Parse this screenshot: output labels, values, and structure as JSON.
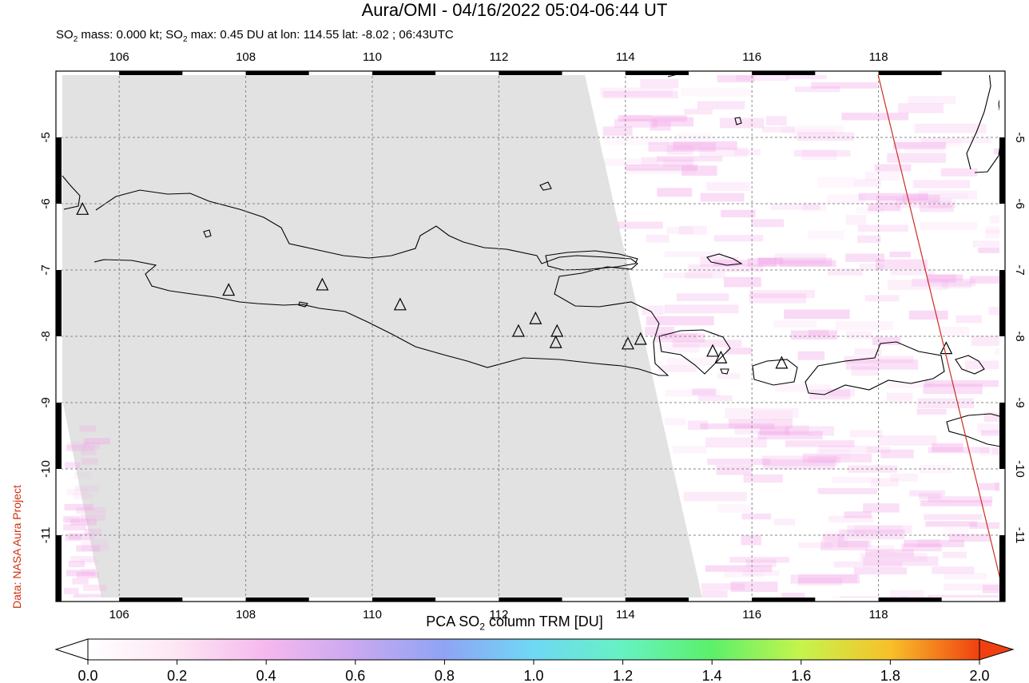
{
  "title": "Aura/OMI - 04/16/2022 05:04-06:44 UT",
  "subtitle": {
    "prefix": "SO",
    "sub": "2",
    "mid1": " mass: 0.000 kt; SO",
    "sub2": "2",
    "rest": " max: 0.45 DU at lon: 114.55 lat: -8.02 ; 06:43UTC"
  },
  "credit": "Data: NASA Aura Project",
  "colorbar": {
    "title_prefix": "PCA SO",
    "title_sub": "2",
    "title_rest": " column TRM [DU]",
    "ticks": [
      "0.0",
      "0.2",
      "0.4",
      "0.6",
      "0.8",
      "1.0",
      "1.2",
      "1.4",
      "1.6",
      "1.8",
      "2.0"
    ],
    "colors": [
      "#ffffff",
      "#fde6f4",
      "#f5b8ee",
      "#c9a8f0",
      "#8fa4f4",
      "#6fd8f4",
      "#66f2c2",
      "#5cf06a",
      "#c6f44c",
      "#f8c02a",
      "#f04010"
    ]
  },
  "map": {
    "lon_range": [
      105,
      120
    ],
    "lat_range": [
      -12,
      -4
    ],
    "lon_ticks": [
      "106",
      "108",
      "110",
      "112",
      "114",
      "116",
      "118"
    ],
    "lat_ticks": [
      "-5",
      "-6",
      "-7",
      "-8",
      "-9",
      "-10",
      "-11"
    ],
    "volcanoes": [
      [
        105.42,
        -6.1
      ],
      [
        107.73,
        -7.32
      ],
      [
        109.21,
        -7.24
      ],
      [
        110.44,
        -7.54
      ],
      [
        112.31,
        -7.94
      ],
      [
        112.58,
        -7.75
      ],
      [
        112.92,
        -7.94
      ],
      [
        112.9,
        -8.11
      ],
      [
        114.04,
        -8.13
      ],
      [
        114.24,
        -8.06
      ],
      [
        115.38,
        -8.24
      ],
      [
        115.51,
        -8.34
      ],
      [
        116.47,
        -8.42
      ],
      [
        119.07,
        -8.2
      ]
    ]
  }
}
